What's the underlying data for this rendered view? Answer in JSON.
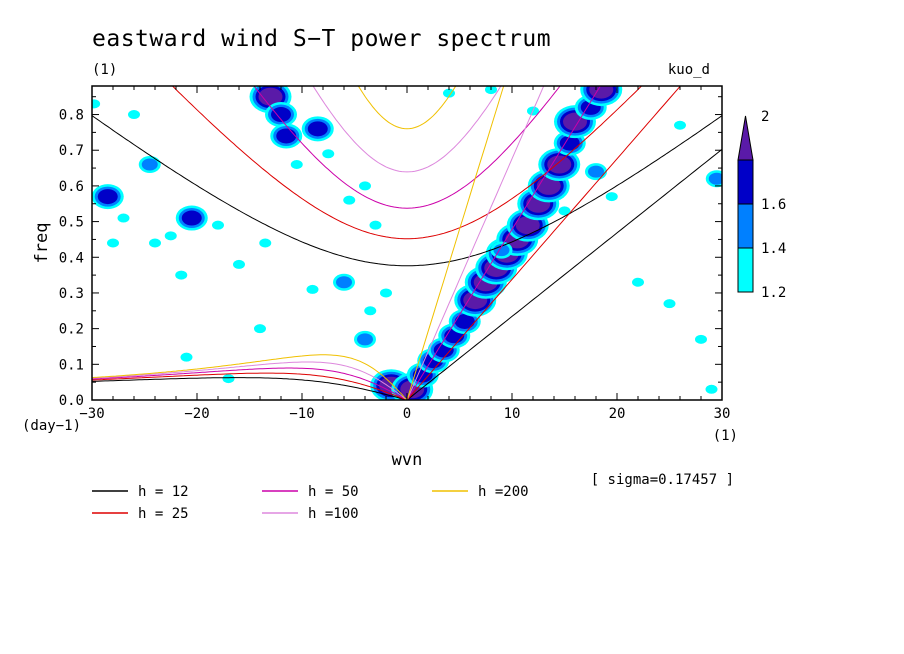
{
  "chart_data": {
    "type": "heatmap",
    "title": "eastward wind S−T power spectrum",
    "subtitle_left": "(1)",
    "subtitle_right": "kuo_d",
    "xlabel": "wvn",
    "ylabel": "freq",
    "xunit": "(1)",
    "yunit": "(day−1)",
    "xlim": [
      -30,
      30
    ],
    "ylim": [
      0,
      0.88
    ],
    "xticks": [
      -30,
      -20,
      -10,
      0,
      10,
      20,
      30
    ],
    "xtick_labels": [
      "−30",
      "−20",
      "−10",
      "0",
      "10",
      "20",
      "30"
    ],
    "yticks": [
      0.0,
      0.1,
      0.2,
      0.3,
      0.4,
      0.5,
      0.6,
      0.7,
      0.8
    ],
    "ytick_labels": [
      "0.0",
      "0.1",
      "0.2",
      "0.3",
      "0.4",
      "0.5",
      "0.6",
      "0.7",
      "0.8"
    ],
    "sigma_note": "[ sigma=0.17457 ]",
    "colorbar": {
      "levels": [
        1.2,
        1.4,
        1.6,
        2
      ],
      "labels": [
        "1.2",
        "1.4",
        "1.6",
        "2"
      ],
      "colors": [
        "#00ffff",
        "#0080ff",
        "#0000c8",
        "#5a1aa8"
      ]
    },
    "dispersion_curves": [
      {
        "label": "h = 12",
        "h": 12,
        "color": "#000000"
      },
      {
        "label": "h = 25",
        "h": 25,
        "color": "#dd0000"
      },
      {
        "label": "h = 50",
        "h": 50,
        "color": "#cc00aa"
      },
      {
        "label": "h =100",
        "h": 100,
        "color": "#dd88dd"
      },
      {
        "label": "h =200",
        "h": 200,
        "color": "#f0c000"
      }
    ],
    "contour_blobs": [
      {
        "x": -29.8,
        "y": 0.83,
        "v": 1.2
      },
      {
        "x": -28.5,
        "y": 0.57,
        "v": 1.6
      },
      {
        "x": -26,
        "y": 0.8,
        "v": 1.2
      },
      {
        "x": -27,
        "y": 0.51,
        "v": 1.2
      },
      {
        "x": -28,
        "y": 0.44,
        "v": 1.2
      },
      {
        "x": -24.5,
        "y": 0.66,
        "v": 1.4
      },
      {
        "x": -24,
        "y": 0.44,
        "v": 1.2
      },
      {
        "x": -22.5,
        "y": 0.46,
        "v": 1.2
      },
      {
        "x": -21.5,
        "y": 0.35,
        "v": 1.2
      },
      {
        "x": -20.5,
        "y": 0.51,
        "v": 1.6
      },
      {
        "x": -18,
        "y": 0.49,
        "v": 1.2
      },
      {
        "x": -16,
        "y": 0.38,
        "v": 1.2
      },
      {
        "x": -13.5,
        "y": 0.44,
        "v": 1.2
      },
      {
        "x": -13,
        "y": 0.85,
        "v": 2
      },
      {
        "x": -12,
        "y": 0.8,
        "v": 1.6
      },
      {
        "x": -11.5,
        "y": 0.74,
        "v": 1.6
      },
      {
        "x": -10.5,
        "y": 0.66,
        "v": 1.2
      },
      {
        "x": -8.5,
        "y": 0.76,
        "v": 1.6
      },
      {
        "x": -7.5,
        "y": 0.69,
        "v": 1.2
      },
      {
        "x": -9,
        "y": 0.31,
        "v": 1.2
      },
      {
        "x": -6,
        "y": 0.33,
        "v": 1.4
      },
      {
        "x": -4,
        "y": 0.6,
        "v": 1.2
      },
      {
        "x": -3,
        "y": 0.49,
        "v": 1.2
      },
      {
        "x": -5.5,
        "y": 0.56,
        "v": 1.2
      },
      {
        "x": -14,
        "y": 0.2,
        "v": 1.2
      },
      {
        "x": -17,
        "y": 0.06,
        "v": 1.2
      },
      {
        "x": -21,
        "y": 0.12,
        "v": 1.2
      },
      {
        "x": -4,
        "y": 0.17,
        "v": 1.4
      },
      {
        "x": -3.5,
        "y": 0.25,
        "v": 1.2
      },
      {
        "x": -2,
        "y": 0.3,
        "v": 1.2
      },
      {
        "x": -1.5,
        "y": 0.04,
        "v": 2
      },
      {
        "x": 0.5,
        "y": 0.03,
        "v": 2
      },
      {
        "x": 1.5,
        "y": 0.07,
        "v": 1.6
      },
      {
        "x": 2.5,
        "y": 0.11,
        "v": 1.6
      },
      {
        "x": 3.5,
        "y": 0.14,
        "v": 1.6
      },
      {
        "x": 4.5,
        "y": 0.18,
        "v": 1.6
      },
      {
        "x": 5.5,
        "y": 0.22,
        "v": 1.6
      },
      {
        "x": 6.5,
        "y": 0.28,
        "v": 2
      },
      {
        "x": 7.5,
        "y": 0.33,
        "v": 2
      },
      {
        "x": 8.5,
        "y": 0.37,
        "v": 2
      },
      {
        "x": 9.5,
        "y": 0.41,
        "v": 2
      },
      {
        "x": 10.5,
        "y": 0.45,
        "v": 2
      },
      {
        "x": 11.5,
        "y": 0.49,
        "v": 2
      },
      {
        "x": 12.5,
        "y": 0.55,
        "v": 2
      },
      {
        "x": 13.5,
        "y": 0.6,
        "v": 2
      },
      {
        "x": 14.5,
        "y": 0.66,
        "v": 2
      },
      {
        "x": 15.5,
        "y": 0.72,
        "v": 1.6
      },
      {
        "x": 16,
        "y": 0.78,
        "v": 2
      },
      {
        "x": 17.5,
        "y": 0.82,
        "v": 1.6
      },
      {
        "x": 18.5,
        "y": 0.87,
        "v": 2
      },
      {
        "x": 9,
        "y": 0.42,
        "v": 1.4
      },
      {
        "x": 15,
        "y": 0.53,
        "v": 1.2
      },
      {
        "x": 18,
        "y": 0.64,
        "v": 1.4
      },
      {
        "x": 19.5,
        "y": 0.57,
        "v": 1.2
      },
      {
        "x": 25,
        "y": 0.27,
        "v": 1.2
      },
      {
        "x": 28,
        "y": 0.17,
        "v": 1.2
      },
      {
        "x": 29.5,
        "y": 0.62,
        "v": 1.4
      },
      {
        "x": 29,
        "y": 0.03,
        "v": 1.2
      },
      {
        "x": 26,
        "y": 0.77,
        "v": 1.2
      },
      {
        "x": 22,
        "y": 0.33,
        "v": 1.2
      },
      {
        "x": 4,
        "y": 0.86,
        "v": 1.2
      },
      {
        "x": 8,
        "y": 0.87,
        "v": 1.2
      },
      {
        "x": 12,
        "y": 0.81,
        "v": 1.2
      }
    ]
  },
  "legend": {
    "items": [
      {
        "label": "h = 12",
        "color": "#000000"
      },
      {
        "label": "h = 25",
        "color": "#dd0000"
      },
      {
        "label": "h = 50",
        "color": "#cc00aa"
      },
      {
        "label": "h =100",
        "color": "#dd88dd"
      },
      {
        "label": "h =200",
        "color": "#f0c000"
      }
    ]
  }
}
